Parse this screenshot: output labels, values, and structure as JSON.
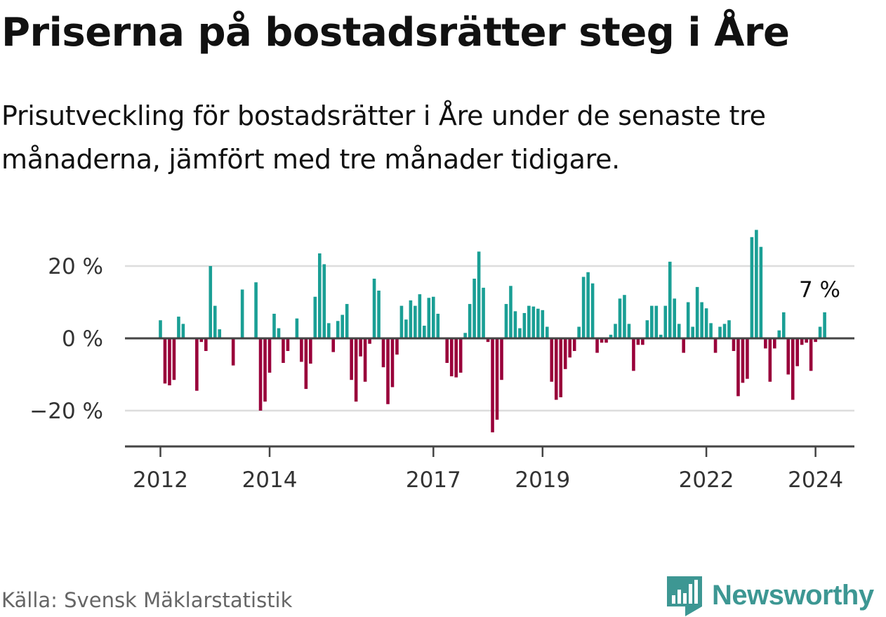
{
  "title": "Priserna på bostadsrätter steg i Åre",
  "subtitle": "Prisutveckling för bostadsrätter i Åre under de senaste tre månaderna, jämfört med tre månader tidigare.",
  "source": "Källa: Svensk Mäklarstatistik",
  "brand": "Newsworthy",
  "colors": {
    "positive": "#1a9f95",
    "negative": "#99003a",
    "brand": "#3d9793"
  },
  "chart_data": {
    "type": "bar",
    "title": "Priserna på bostadsrätter steg i Åre",
    "ylabel": "",
    "xlabel": "",
    "ylim": [
      -30,
      30
    ],
    "yticks": [
      -20,
      0,
      20
    ],
    "ytick_labels": [
      "−20 %",
      "0 %",
      "20 %"
    ],
    "xticks": [
      {
        "index": 0,
        "label": "2012"
      },
      {
        "index": 24,
        "label": "2014"
      },
      {
        "index": 60,
        "label": "2017"
      },
      {
        "index": 84,
        "label": "2019"
      },
      {
        "index": 120,
        "label": "2022"
      },
      {
        "index": 144,
        "label": "2024"
      }
    ],
    "annotation": "7 %",
    "values": [
      5,
      -12.5,
      -13,
      -11.5,
      6,
      4,
      0,
      0,
      -14.5,
      -1,
      -3.5,
      20,
      9,
      2.5,
      0,
      0,
      -7.5,
      0,
      13.5,
      0,
      0,
      15.5,
      -20,
      -17.5,
      -9.5,
      6.8,
      2.8,
      -6.8,
      -3.5,
      0,
      5.5,
      -6.5,
      -14,
      -7,
      11.5,
      23.5,
      20.5,
      4.2,
      -3.8,
      4.8,
      6.5,
      9.5,
      -11.5,
      -17.5,
      -5,
      -12,
      -1.5,
      16.5,
      13.2,
      -8,
      -18.2,
      -13.5,
      -4.5,
      9,
      5.2,
      10.5,
      9,
      12.2,
      3.5,
      11.2,
      11.5,
      6.8,
      0,
      -6.8,
      -10.5,
      -10.8,
      -9.5,
      1.5,
      9.5,
      16.5,
      24,
      14,
      -1,
      -26,
      -22.5,
      -11.5,
      9.5,
      14.5,
      7.5,
      2.8,
      7,
      9,
      8.8,
      8.2,
      7.8,
      3.2,
      -12,
      -17,
      -16.3,
      -8.5,
      -5.3,
      -3.5,
      3.2,
      17,
      18.3,
      15.2,
      -4,
      -1.2,
      -1.2,
      1,
      4,
      11,
      12,
      4,
      -9,
      -1.8,
      -1.8,
      5,
      9,
      9,
      1,
      9,
      21.2,
      11,
      4,
      -4,
      10,
      3.2,
      14.2,
      10,
      8.3,
      4.2,
      -4,
      3.2,
      4,
      5,
      -3.5,
      -16,
      -12.3,
      -11.2,
      28,
      30,
      25.3,
      -2.8,
      -12,
      -2.8,
      2.2,
      7.2,
      -10,
      -17,
      -7.7,
      -1.8,
      -1.2,
      -9,
      -1,
      3.2,
      7.2
    ]
  }
}
